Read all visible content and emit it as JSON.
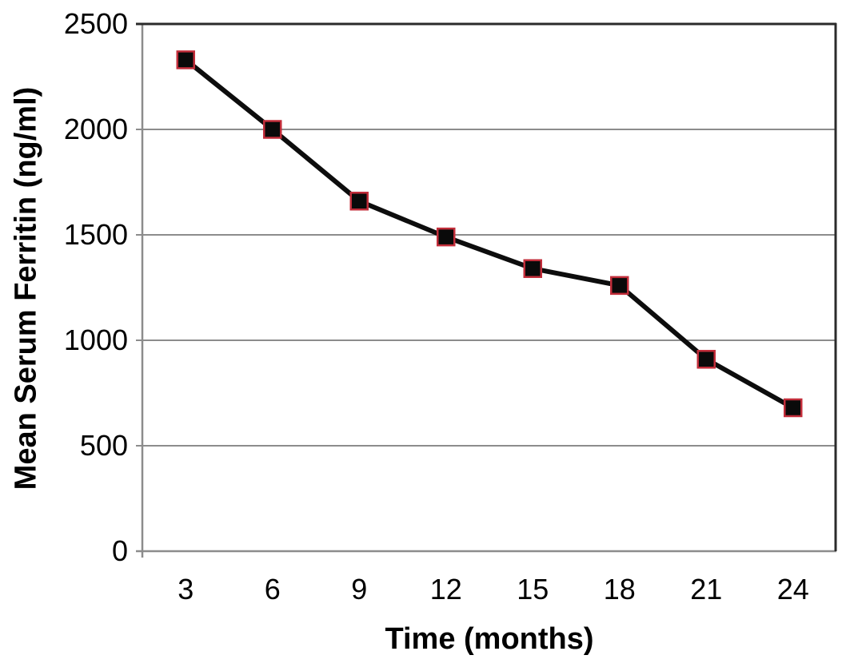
{
  "chart_data": {
    "type": "line",
    "title": "",
    "xlabel": "Time (months)",
    "ylabel": "Mean Serum Ferritin (ng/ml)",
    "categories": [
      3,
      6,
      9,
      12,
      15,
      18,
      21,
      24
    ],
    "values": [
      2330,
      2000,
      1660,
      1490,
      1340,
      1260,
      910,
      680
    ],
    "ylim": [
      0,
      2500
    ],
    "y_ticks": [
      0,
      500,
      1000,
      1500,
      2000,
      2500
    ],
    "grid": "horizontal",
    "legend": "none",
    "marker": "square",
    "colors": {
      "line": "#0d0d0d",
      "marker_fill": "#0a0a0a",
      "marker_border": "#c22d3a",
      "gridline": "#8c8c8c",
      "axis_line": "#8c8c8c",
      "plot_border_dark": "#2b2b2b",
      "text": "#000000",
      "background": "#ffffff"
    }
  }
}
